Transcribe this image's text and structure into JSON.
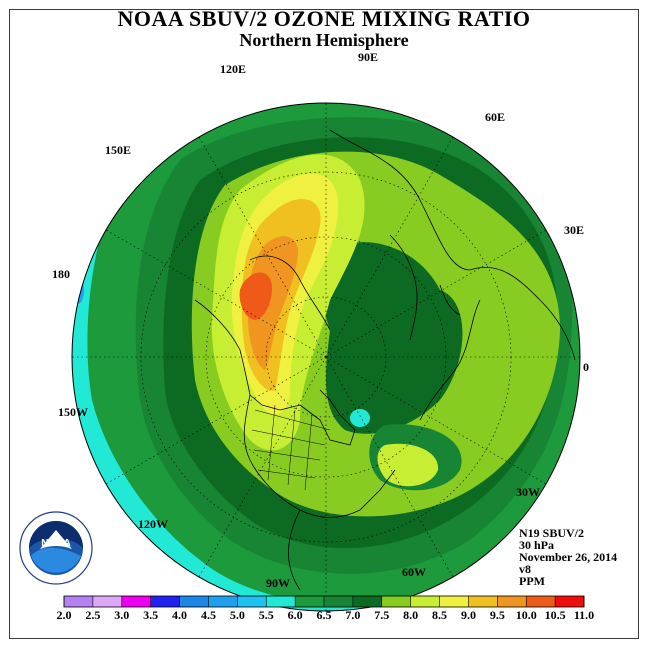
{
  "header": {
    "title": "NOAA SBUV/2 OZONE MIXING RATIO",
    "subtitle": "Northern Hemisphere"
  },
  "map": {
    "longitude_labels": [
      "90E",
      "60E",
      "30E",
      "0",
      "30W",
      "60W",
      "90W",
      "120W",
      "150W",
      "180",
      "150E",
      "120E"
    ],
    "projection": "north polar stereographic",
    "field": "ozone mixing ratio"
  },
  "info": {
    "instrument": "N19 SBUV/2",
    "level": "30 hPa",
    "date": "November 26, 2014",
    "version": "v8",
    "units": "PPM"
  },
  "legend": {
    "tick_labels": [
      "2.0",
      "2.5",
      "3.0",
      "3.5",
      "4.0",
      "4.5",
      "5.0",
      "5.5",
      "6.0",
      "6.5",
      "7.0",
      "7.5",
      "8.0",
      "8.5",
      "9.0",
      "9.5",
      "10.0",
      "10.5",
      "11.0"
    ],
    "colors": [
      "#b481f0",
      "#dca8f5",
      "#ee00ee",
      "#2222ee",
      "#1e86e8",
      "#1ea0ee",
      "#20c0f0",
      "#22e8d6",
      "#1c9a3c",
      "#178533",
      "#0d6a22",
      "#88cc22",
      "#c8ee33",
      "#f0f040",
      "#f0c020",
      "#f09520",
      "#f05a18",
      "#ee0d0d",
      "#8a5a3a"
    ]
  },
  "logo": {
    "text": "NOAA",
    "ring_text": "NATIONAL OCEANIC AND ATMOSPHERIC ADMINISTRATION • U.S. DEPARTMENT OF COMMERCE"
  }
}
